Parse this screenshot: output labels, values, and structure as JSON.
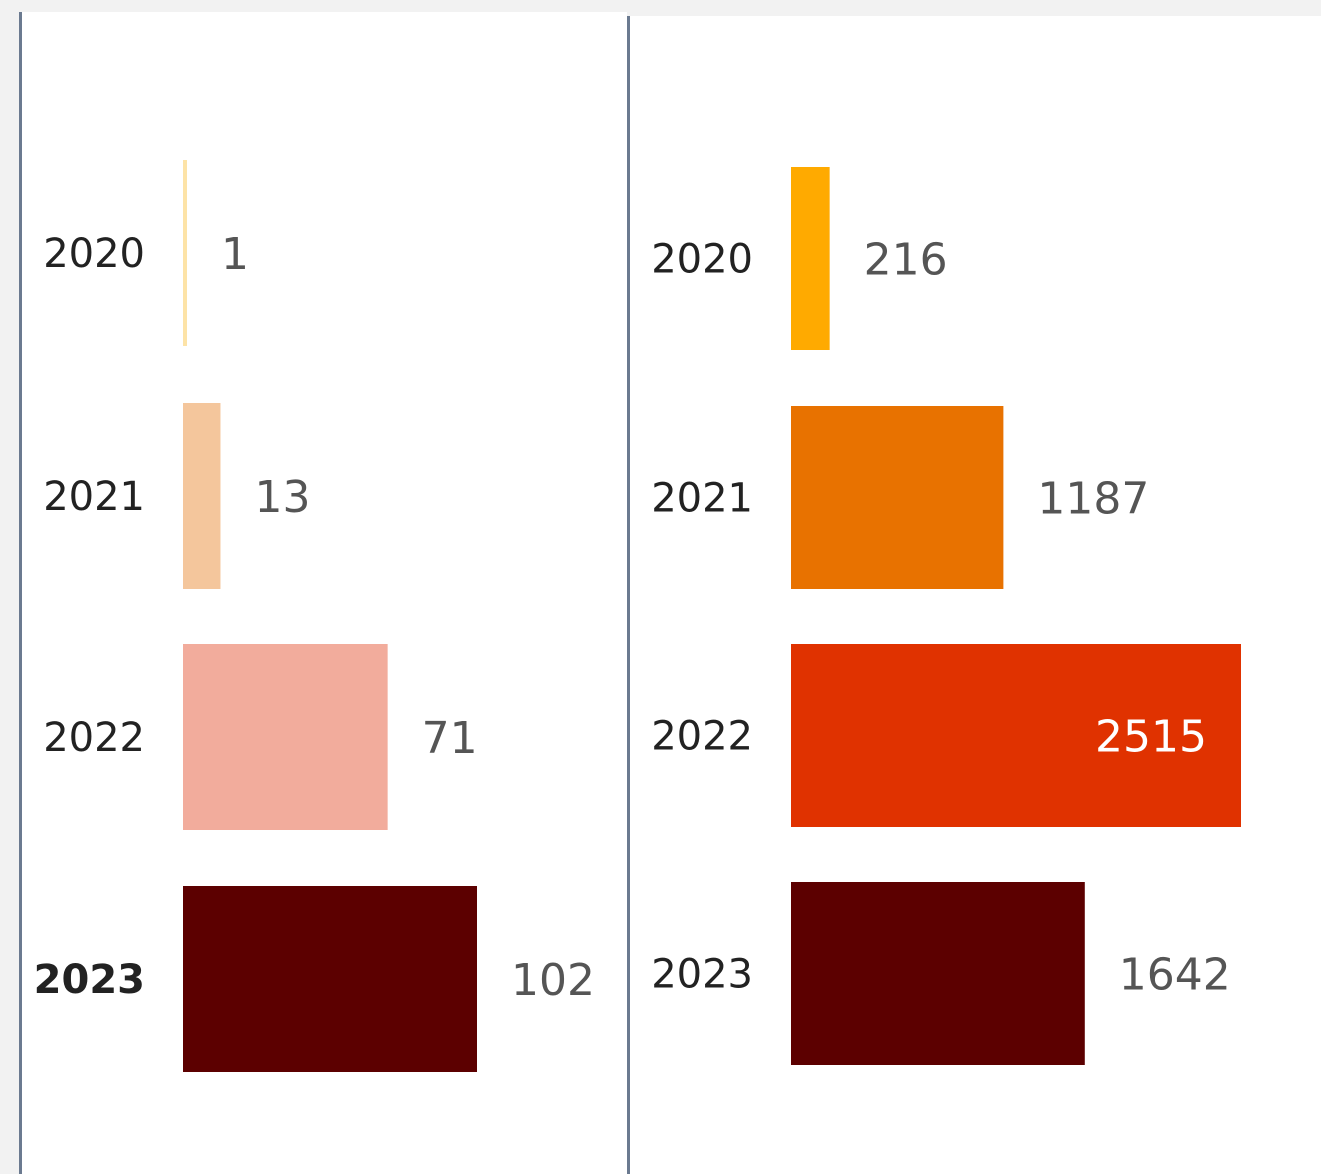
{
  "chart_data": [
    {
      "type": "bar",
      "orientation": "horizontal",
      "categories": [
        "2020",
        "2021",
        "2022",
        "2023"
      ],
      "values": [
        1,
        13,
        71,
        102
      ],
      "colors": [
        "#fde3a7",
        "#f4c69c",
        "#f2ac9c",
        "#5c0000"
      ],
      "highlight_category": "2023",
      "xlim": [
        0,
        102
      ]
    },
    {
      "type": "bar",
      "orientation": "horizontal",
      "categories": [
        "2020",
        "2021",
        "2022",
        "2023"
      ],
      "values": [
        216,
        1187,
        2515,
        1642
      ],
      "colors": [
        "#ffaa00",
        "#e87200",
        "#e03200",
        "#5c0000"
      ],
      "value_label_inside": "2515",
      "xlim": [
        0,
        2515
      ]
    }
  ]
}
